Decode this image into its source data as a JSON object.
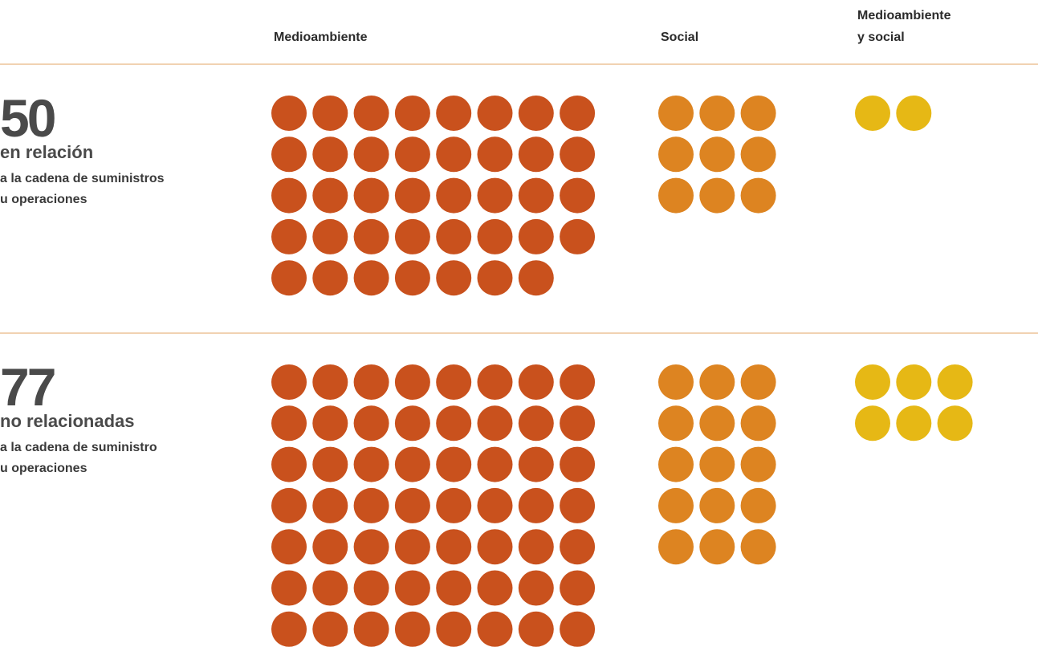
{
  "chart_data": {
    "type": "unit",
    "categories": [
      [
        "Medioambiente"
      ],
      [
        "Social"
      ],
      [
        "Medioambiente",
        "y social"
      ]
    ],
    "colors": [
      "#c9511d",
      "#dd8421",
      "#e6b815"
    ],
    "groups": [
      {
        "total": 50,
        "label": "en relación",
        "sublabel": [
          "a la cadena de suministros",
          "u operaciones"
        ],
        "values": [
          39,
          9,
          2
        ]
      },
      {
        "total": 77,
        "label": "no relacionadas",
        "sublabel": [
          "a la cadena de suministro",
          "u operaciones"
        ],
        "values": [
          56,
          15,
          6
        ]
      }
    ]
  }
}
